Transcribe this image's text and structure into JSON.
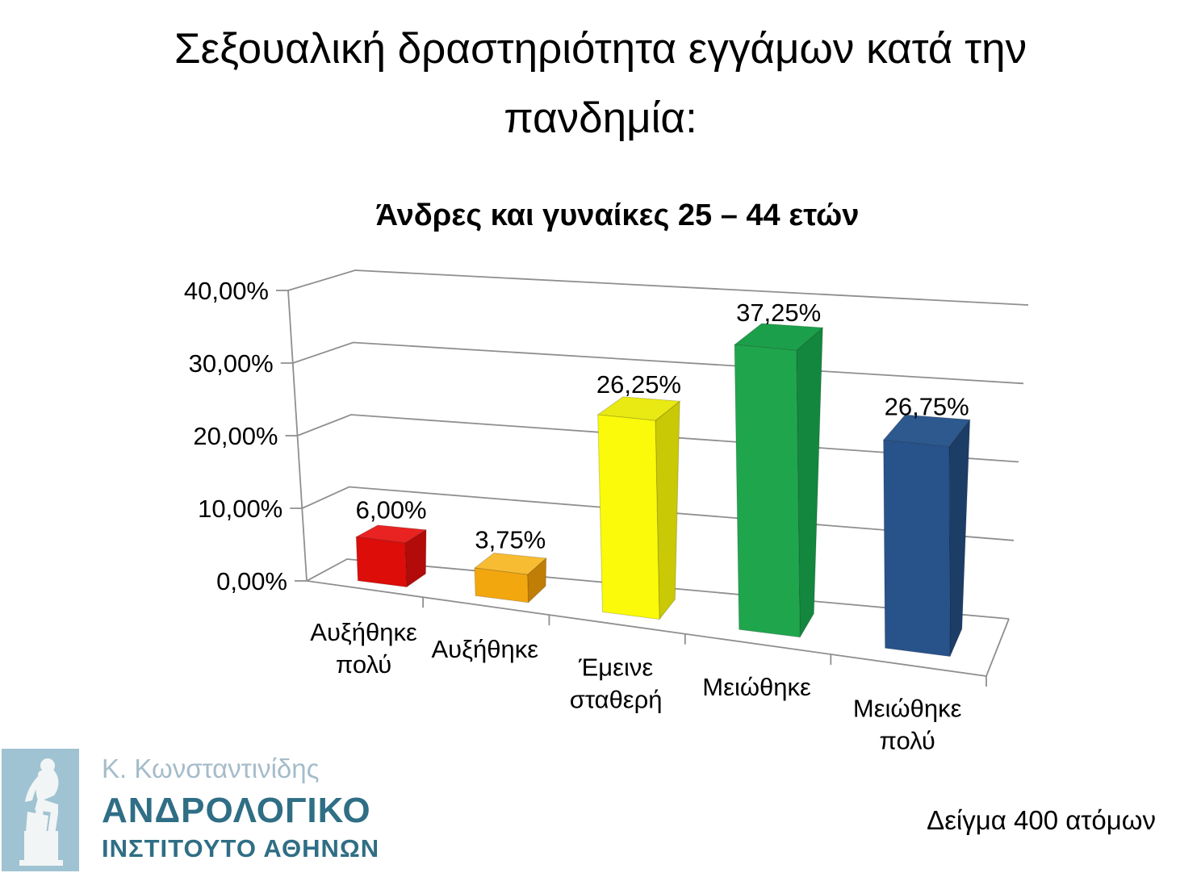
{
  "slide": {
    "title_lines": [
      "Σεξουαλική δραστηριότητα εγγάμων κατά την",
      "πανδημία:"
    ],
    "sample_note": "Δείγμα 400 ατόμων"
  },
  "logo": {
    "line1": "Κ. Κωνσταντινίδης",
    "line2": "ΑΝΔΡΟΛΟΓΙΚΟ",
    "line3": "ΙΝΣΤΙΤΟΥΤΟ ΑΘΗΝΩΝ",
    "square_color": "#9FC3D2",
    "statue_color": "#F2F5F5",
    "line1_color": "#A5BCCA",
    "line23_color": "#2F6E85"
  },
  "chart_data": {
    "type": "bar",
    "projection": "3d-perspective",
    "title": "Άνδρες και γυναίκες 25 – 44 ετών",
    "categories": [
      "Αυξήθηκε πολύ",
      "Αυξήθηκε",
      "Έμεινε σταθερή",
      "Μειώθηκε",
      "Μειώθηκε πολύ"
    ],
    "category_lines": [
      [
        "Αυξήθηκε",
        "πολύ"
      ],
      [
        "Αυξήθηκε"
      ],
      [
        "Έμεινε",
        "σταθερή"
      ],
      [
        "Μειώθηκε"
      ],
      [
        "Μειώθηκε",
        "πολύ"
      ]
    ],
    "values": [
      6.0,
      3.75,
      26.25,
      37.25,
      26.75
    ],
    "value_labels": [
      "6,00%",
      "3,75%",
      "26,25%",
      "37,25%",
      "26,75%"
    ],
    "y_ticks": [
      "0,00%",
      "10,00%",
      "20,00%",
      "30,00%",
      "40,00%"
    ],
    "ylim": [
      0,
      40
    ],
    "grid": true,
    "legend": false,
    "axis_color": "#8F8F8F",
    "label_color": "#000000",
    "bar_colors": [
      {
        "front": "#DD0D0A",
        "top": "#E82321",
        "side": "#B20B09"
      },
      {
        "front": "#F3A70F",
        "top": "#F8BC33",
        "side": "#C17E06"
      },
      {
        "front": "#FAFA0A",
        "top": "#E9E913",
        "side": "#C9C905"
      },
      {
        "front": "#1FA64D",
        "top": "#1C9F4A",
        "side": "#13873E"
      },
      {
        "front": "#28528A",
        "top": "#2D598E",
        "side": "#1C3D66"
      }
    ]
  }
}
